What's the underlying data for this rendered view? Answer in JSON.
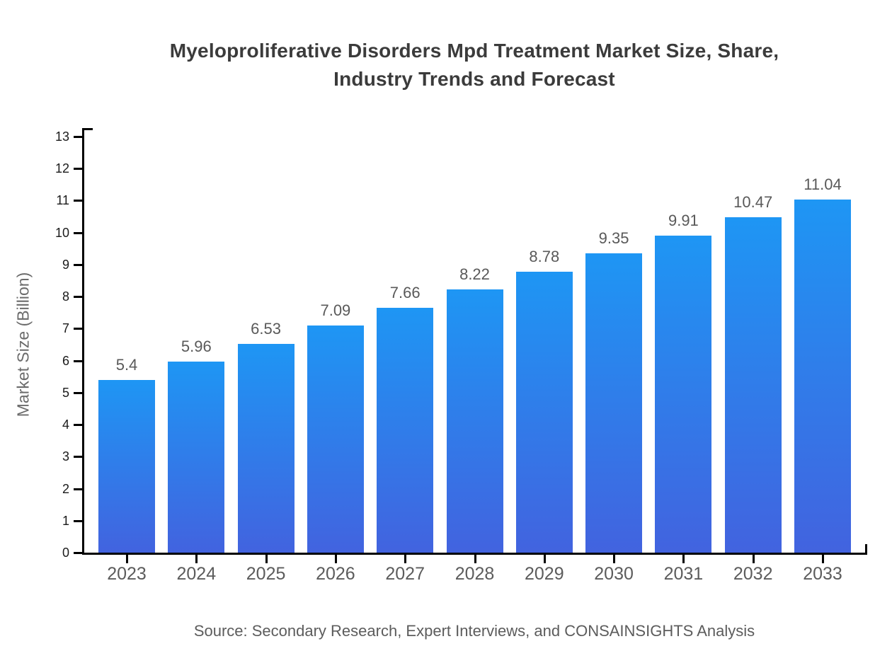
{
  "title": {
    "lines": [
      "Myeloproliferative Disorders Mpd Treatment Market Size, Share,",
      "Industry Trends and Forecast"
    ]
  },
  "source": {
    "text": "Source: Secondary Research, Expert Interviews, and CONSAINSIGHTS Analysis"
  },
  "colors": {
    "bar_gradient_top": "#1e96f4",
    "bar_gradient_bottom": "#4263df",
    "axis": "#000000",
    "title_text": "#3b3b3b",
    "tick_label": "#1a1a1a",
    "value_label": "#595959",
    "year_label": "#5c5c5c",
    "ylabel_text": "#6b6b6b",
    "source_text": "#5c5c5c"
  },
  "chart_data": {
    "type": "bar",
    "title": "Myeloproliferative Disorders Mpd Treatment Market Size, Share, Industry Trends and Forecast",
    "categories": [
      "2023",
      "2024",
      "2025",
      "2026",
      "2027",
      "2028",
      "2029",
      "2030",
      "2031",
      "2032",
      "2033"
    ],
    "values": [
      5.4,
      5.96,
      6.53,
      7.09,
      7.66,
      8.22,
      8.78,
      9.35,
      9.91,
      10.47,
      11.04
    ],
    "value_labels": [
      "5.4",
      "5.96",
      "6.53",
      "7.09",
      "7.66",
      "8.22",
      "8.78",
      "9.35",
      "9.91",
      "10.47",
      "11.04"
    ],
    "xlabel": "",
    "ylabel": "Market Size (Billion)",
    "ylim": [
      0,
      13
    ],
    "yticks": [
      0,
      1,
      2,
      3,
      4,
      5,
      6,
      7,
      8,
      9,
      10,
      11,
      12,
      13
    ],
    "grid": false,
    "legend": "none"
  }
}
